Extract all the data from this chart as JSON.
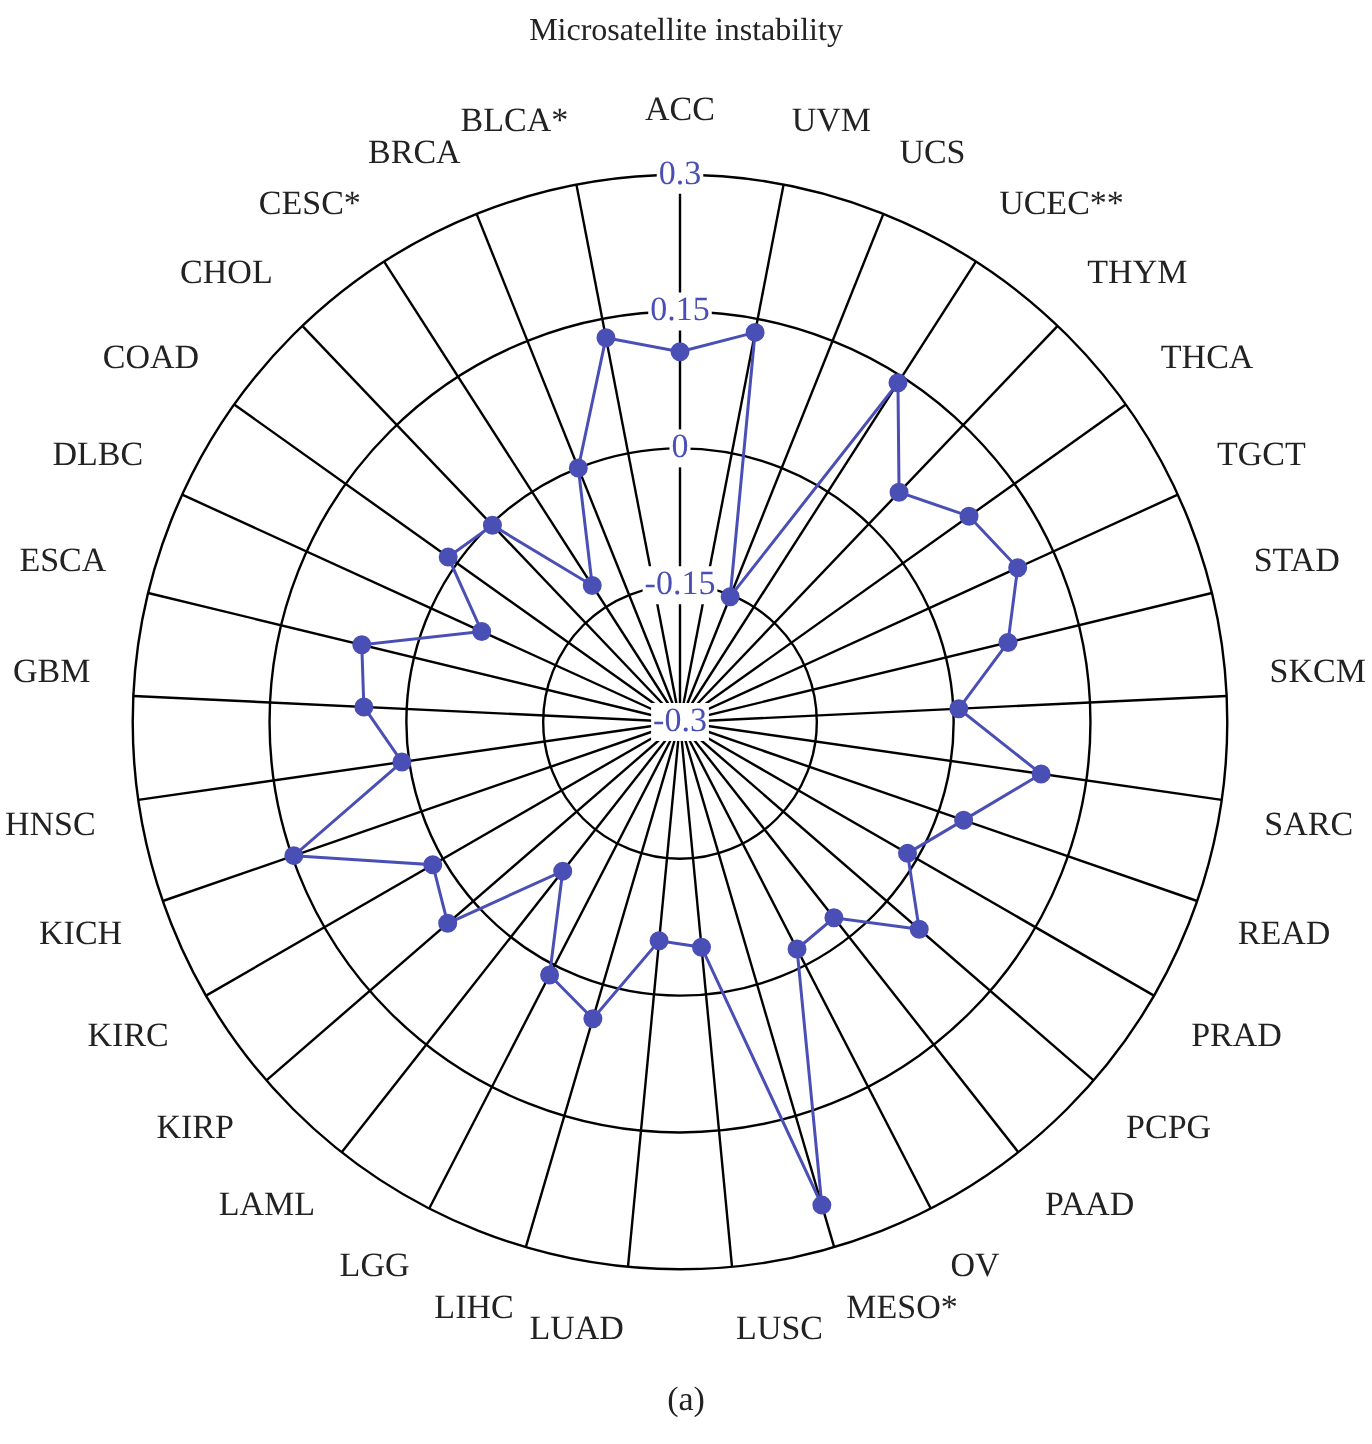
{
  "chart_data": {
    "type": "radar",
    "title": "Microsatellite instability",
    "categories": [
      "ACC",
      "UVM",
      "UCS",
      "UCEC**",
      "THYM",
      "THCA",
      "TGCT",
      "STAD",
      "SKCM",
      "SARC",
      "READ",
      "PRAD",
      "PCPG",
      "PAAD",
      "OV",
      "MESO*",
      "LUSC",
      "LUAD",
      "LIHC",
      "LGG",
      "LAML",
      "KIRP",
      "KIRC",
      "KICH",
      "HNSC",
      "GBM",
      "ESCA",
      "DLBC",
      "COAD",
      "CHOL",
      "CESC*",
      "BRCA",
      "BLCA*"
    ],
    "series": [
      {
        "color": "#4a4fb5",
        "values": [
          0.106,
          0.135,
          -0.152,
          0.142,
          0.048,
          0.089,
          0.107,
          0.07,
          0.006,
          0.1,
          0.029,
          -0.012,
          0.047,
          -0.027,
          -0.02,
          0.252,
          -0.052,
          -0.059,
          0.039,
          0.012,
          -0.092,
          0.037,
          0.013,
          0.148,
          0.008,
          0.047,
          0.059,
          -0.061,
          0.012,
          -0.002,
          -0.122,
          0,
          0.129
        ]
      }
    ],
    "ylim": [
      -0.3,
      0.3
    ],
    "yticks": [
      -0.3,
      -0.15,
      0,
      0.15,
      0.3
    ],
    "grid": true,
    "legend": false,
    "marker": "circle",
    "annotations": [
      "(a)"
    ]
  }
}
